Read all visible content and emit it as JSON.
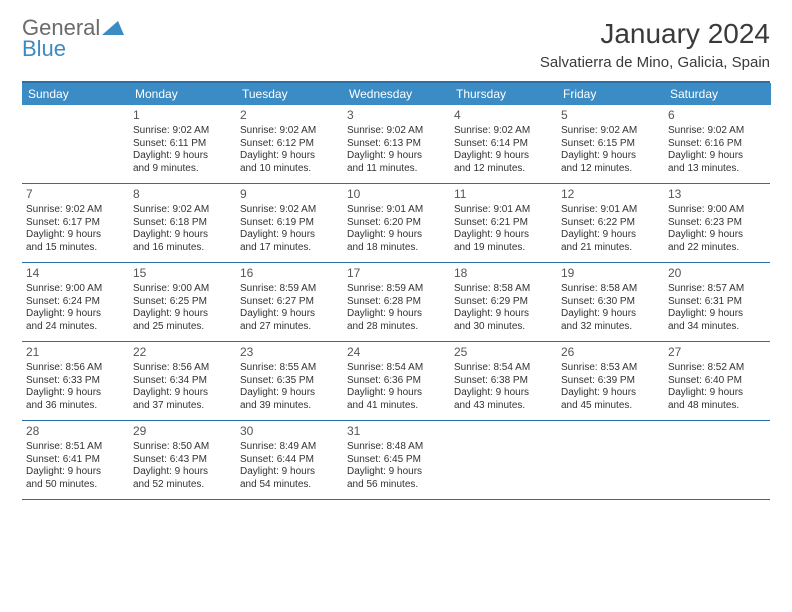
{
  "brand": {
    "line1": "General",
    "line2": "Blue"
  },
  "title": "January 2024",
  "location": "Salvatierra de Mino, Galicia, Spain",
  "colors": {
    "header_bg": "#3b8bc4",
    "border": "#2a6fa8",
    "text": "#333333",
    "bg": "#ffffff"
  },
  "day_headers": [
    "Sunday",
    "Monday",
    "Tuesday",
    "Wednesday",
    "Thursday",
    "Friday",
    "Saturday"
  ],
  "weeks": [
    [
      null,
      {
        "n": "1",
        "sr": "9:02 AM",
        "ss": "6:11 PM",
        "dl1": "Daylight: 9 hours",
        "dl2": "and 9 minutes."
      },
      {
        "n": "2",
        "sr": "9:02 AM",
        "ss": "6:12 PM",
        "dl1": "Daylight: 9 hours",
        "dl2": "and 10 minutes."
      },
      {
        "n": "3",
        "sr": "9:02 AM",
        "ss": "6:13 PM",
        "dl1": "Daylight: 9 hours",
        "dl2": "and 11 minutes."
      },
      {
        "n": "4",
        "sr": "9:02 AM",
        "ss": "6:14 PM",
        "dl1": "Daylight: 9 hours",
        "dl2": "and 12 minutes."
      },
      {
        "n": "5",
        "sr": "9:02 AM",
        "ss": "6:15 PM",
        "dl1": "Daylight: 9 hours",
        "dl2": "and 12 minutes."
      },
      {
        "n": "6",
        "sr": "9:02 AM",
        "ss": "6:16 PM",
        "dl1": "Daylight: 9 hours",
        "dl2": "and 13 minutes."
      }
    ],
    [
      {
        "n": "7",
        "sr": "9:02 AM",
        "ss": "6:17 PM",
        "dl1": "Daylight: 9 hours",
        "dl2": "and 15 minutes."
      },
      {
        "n": "8",
        "sr": "9:02 AM",
        "ss": "6:18 PM",
        "dl1": "Daylight: 9 hours",
        "dl2": "and 16 minutes."
      },
      {
        "n": "9",
        "sr": "9:02 AM",
        "ss": "6:19 PM",
        "dl1": "Daylight: 9 hours",
        "dl2": "and 17 minutes."
      },
      {
        "n": "10",
        "sr": "9:01 AM",
        "ss": "6:20 PM",
        "dl1": "Daylight: 9 hours",
        "dl2": "and 18 minutes."
      },
      {
        "n": "11",
        "sr": "9:01 AM",
        "ss": "6:21 PM",
        "dl1": "Daylight: 9 hours",
        "dl2": "and 19 minutes."
      },
      {
        "n": "12",
        "sr": "9:01 AM",
        "ss": "6:22 PM",
        "dl1": "Daylight: 9 hours",
        "dl2": "and 21 minutes."
      },
      {
        "n": "13",
        "sr": "9:00 AM",
        "ss": "6:23 PM",
        "dl1": "Daylight: 9 hours",
        "dl2": "and 22 minutes."
      }
    ],
    [
      {
        "n": "14",
        "sr": "9:00 AM",
        "ss": "6:24 PM",
        "dl1": "Daylight: 9 hours",
        "dl2": "and 24 minutes."
      },
      {
        "n": "15",
        "sr": "9:00 AM",
        "ss": "6:25 PM",
        "dl1": "Daylight: 9 hours",
        "dl2": "and 25 minutes."
      },
      {
        "n": "16",
        "sr": "8:59 AM",
        "ss": "6:27 PM",
        "dl1": "Daylight: 9 hours",
        "dl2": "and 27 minutes."
      },
      {
        "n": "17",
        "sr": "8:59 AM",
        "ss": "6:28 PM",
        "dl1": "Daylight: 9 hours",
        "dl2": "and 28 minutes."
      },
      {
        "n": "18",
        "sr": "8:58 AM",
        "ss": "6:29 PM",
        "dl1": "Daylight: 9 hours",
        "dl2": "and 30 minutes."
      },
      {
        "n": "19",
        "sr": "8:58 AM",
        "ss": "6:30 PM",
        "dl1": "Daylight: 9 hours",
        "dl2": "and 32 minutes."
      },
      {
        "n": "20",
        "sr": "8:57 AM",
        "ss": "6:31 PM",
        "dl1": "Daylight: 9 hours",
        "dl2": "and 34 minutes."
      }
    ],
    [
      {
        "n": "21",
        "sr": "8:56 AM",
        "ss": "6:33 PM",
        "dl1": "Daylight: 9 hours",
        "dl2": "and 36 minutes."
      },
      {
        "n": "22",
        "sr": "8:56 AM",
        "ss": "6:34 PM",
        "dl1": "Daylight: 9 hours",
        "dl2": "and 37 minutes."
      },
      {
        "n": "23",
        "sr": "8:55 AM",
        "ss": "6:35 PM",
        "dl1": "Daylight: 9 hours",
        "dl2": "and 39 minutes."
      },
      {
        "n": "24",
        "sr": "8:54 AM",
        "ss": "6:36 PM",
        "dl1": "Daylight: 9 hours",
        "dl2": "and 41 minutes."
      },
      {
        "n": "25",
        "sr": "8:54 AM",
        "ss": "6:38 PM",
        "dl1": "Daylight: 9 hours",
        "dl2": "and 43 minutes."
      },
      {
        "n": "26",
        "sr": "8:53 AM",
        "ss": "6:39 PM",
        "dl1": "Daylight: 9 hours",
        "dl2": "and 45 minutes."
      },
      {
        "n": "27",
        "sr": "8:52 AM",
        "ss": "6:40 PM",
        "dl1": "Daylight: 9 hours",
        "dl2": "and 48 minutes."
      }
    ],
    [
      {
        "n": "28",
        "sr": "8:51 AM",
        "ss": "6:41 PM",
        "dl1": "Daylight: 9 hours",
        "dl2": "and 50 minutes."
      },
      {
        "n": "29",
        "sr": "8:50 AM",
        "ss": "6:43 PM",
        "dl1": "Daylight: 9 hours",
        "dl2": "and 52 minutes."
      },
      {
        "n": "30",
        "sr": "8:49 AM",
        "ss": "6:44 PM",
        "dl1": "Daylight: 9 hours",
        "dl2": "and 54 minutes."
      },
      {
        "n": "31",
        "sr": "8:48 AM",
        "ss": "6:45 PM",
        "dl1": "Daylight: 9 hours",
        "dl2": "and 56 minutes."
      },
      null,
      null,
      null
    ]
  ]
}
